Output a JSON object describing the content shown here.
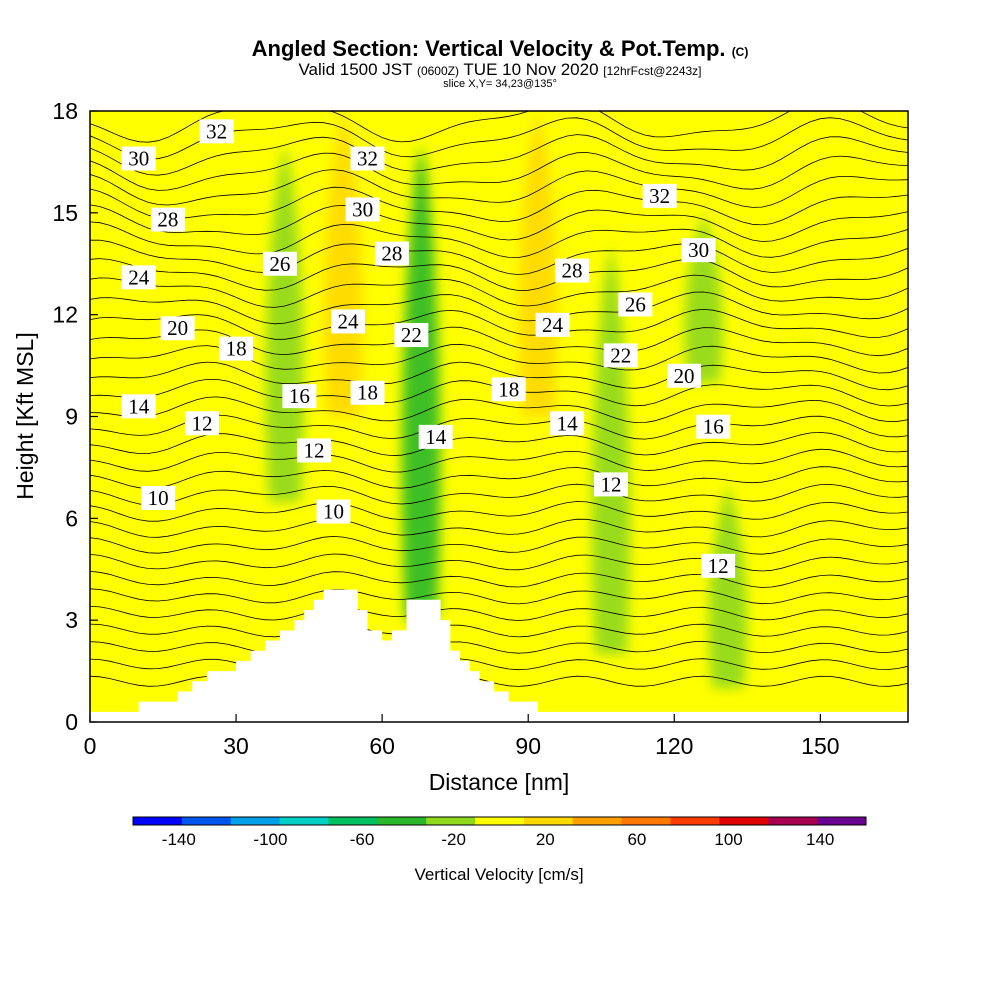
{
  "header": {
    "title": "Angled Section: Vertical Velocity & Pot.Temp.",
    "title_mark": "(C)",
    "subtitle_a": "Valid 1500 JST",
    "subtitle_b": "(0600Z)",
    "subtitle_c": "TUE 10 Nov 2020",
    "subtitle_d": "[12hrFcst@2243z]",
    "slice": "slice X,Y= 34,23@135°"
  },
  "chart_data": {
    "type": "heatmap",
    "xlabel": "Distance [nm]",
    "ylabel": "Height [Kft MSL]",
    "xlim": [
      0,
      168
    ],
    "ylim": [
      0,
      18
    ],
    "x_ticks": [
      "0",
      "30",
      "60",
      "90",
      "120",
      "150"
    ],
    "x_tick_values": [
      0,
      30,
      60,
      90,
      120,
      150
    ],
    "y_ticks": [
      "0",
      "3",
      "6",
      "9",
      "12",
      "15",
      "18"
    ],
    "y_tick_values": [
      0,
      3,
      6,
      9,
      12,
      15,
      18
    ],
    "colorbar": {
      "label": "Vertical Velocity [cm/s]",
      "ticks": [
        "-140",
        "-100",
        "-60",
        "-20",
        "20",
        "60",
        "100",
        "140"
      ],
      "tick_values": [
        -140,
        -100,
        -60,
        -20,
        20,
        60,
        100,
        140
      ],
      "range": [
        -160,
        160
      ],
      "colors": [
        "#0000ff",
        "#0055ee",
        "#00a0e8",
        "#00cfc8",
        "#00c060",
        "#2ab82a",
        "#8ed81e",
        "#ffff00",
        "#ffd800",
        "#ffa000",
        "#ff7800",
        "#ff3c00",
        "#e00000",
        "#a80050",
        "#6a0090"
      ]
    },
    "velocity_bands": [
      {
        "x": 20,
        "ymin": 7.5,
        "ymax": 18,
        "value": 5
      },
      {
        "x": 40,
        "ymin": 6.5,
        "ymax": 17,
        "value": -25
      },
      {
        "x": 52,
        "ymin": 9,
        "ymax": 18,
        "value": 25
      },
      {
        "x": 68,
        "ymin": 3,
        "ymax": 17,
        "value": -45
      },
      {
        "x": 92,
        "ymin": 9,
        "ymax": 18,
        "value": 25
      },
      {
        "x": 107,
        "ymin": 2,
        "ymax": 14,
        "value": -25
      },
      {
        "x": 126,
        "ymin": 10,
        "ymax": 15,
        "value": -25
      },
      {
        "x": 131,
        "ymin": 1,
        "ymax": 7,
        "value": -25
      }
    ],
    "terrain": [
      {
        "x": 0,
        "h": 0.3
      },
      {
        "x": 10,
        "h": 0.6
      },
      {
        "x": 16,
        "h": 0.6
      },
      {
        "x": 18,
        "h": 0.9
      },
      {
        "x": 21,
        "h": 1.2
      },
      {
        "x": 24,
        "h": 1.5
      },
      {
        "x": 30,
        "h": 1.8
      },
      {
        "x": 33,
        "h": 2.1
      },
      {
        "x": 36,
        "h": 2.4
      },
      {
        "x": 39,
        "h": 2.7
      },
      {
        "x": 42,
        "h": 3.0
      },
      {
        "x": 44,
        "h": 3.3
      },
      {
        "x": 46,
        "h": 3.6
      },
      {
        "x": 48,
        "h": 3.9
      },
      {
        "x": 53,
        "h": 3.9
      },
      {
        "x": 55,
        "h": 3.3
      },
      {
        "x": 57,
        "h": 2.7
      },
      {
        "x": 60,
        "h": 2.4
      },
      {
        "x": 62,
        "h": 2.7
      },
      {
        "x": 65,
        "h": 3.6
      },
      {
        "x": 70,
        "h": 3.6
      },
      {
        "x": 72,
        "h": 3.0
      },
      {
        "x": 74,
        "h": 2.1
      },
      {
        "x": 76,
        "h": 1.8
      },
      {
        "x": 78,
        "h": 1.5
      },
      {
        "x": 80,
        "h": 1.2
      },
      {
        "x": 83,
        "h": 0.9
      },
      {
        "x": 86,
        "h": 0.6
      },
      {
        "x": 92,
        "h": 0.3
      },
      {
        "x": 168,
        "h": 0.3
      }
    ],
    "contour_labels": [
      {
        "text": "32",
        "x": 26,
        "y": 17.4
      },
      {
        "text": "30",
        "x": 10,
        "y": 16.6
      },
      {
        "text": "32",
        "x": 57,
        "y": 16.6
      },
      {
        "text": "32",
        "x": 117,
        "y": 15.5
      },
      {
        "text": "28",
        "x": 16,
        "y": 14.8
      },
      {
        "text": "30",
        "x": 56,
        "y": 15.1
      },
      {
        "text": "28",
        "x": 62,
        "y": 13.8
      },
      {
        "text": "30",
        "x": 125,
        "y": 13.9
      },
      {
        "text": "26",
        "x": 39,
        "y": 13.5
      },
      {
        "text": "24",
        "x": 10,
        "y": 13.1
      },
      {
        "text": "28",
        "x": 99,
        "y": 13.3
      },
      {
        "text": "26",
        "x": 112,
        "y": 12.3
      },
      {
        "text": "24",
        "x": 53,
        "y": 11.8
      },
      {
        "text": "24",
        "x": 95,
        "y": 11.7
      },
      {
        "text": "20",
        "x": 18,
        "y": 11.6
      },
      {
        "text": "22",
        "x": 66,
        "y": 11.4
      },
      {
        "text": "18",
        "x": 30,
        "y": 11.0
      },
      {
        "text": "22",
        "x": 109,
        "y": 10.8
      },
      {
        "text": "20",
        "x": 122,
        "y": 10.2
      },
      {
        "text": "18",
        "x": 86,
        "y": 9.8
      },
      {
        "text": "16",
        "x": 43,
        "y": 9.6
      },
      {
        "text": "18",
        "x": 57,
        "y": 9.7
      },
      {
        "text": "14",
        "x": 10,
        "y": 9.3
      },
      {
        "text": "12",
        "x": 23,
        "y": 8.8
      },
      {
        "text": "14",
        "x": 98,
        "y": 8.8
      },
      {
        "text": "16",
        "x": 128,
        "y": 8.7
      },
      {
        "text": "14",
        "x": 71,
        "y": 8.4
      },
      {
        "text": "12",
        "x": 46,
        "y": 8.0
      },
      {
        "text": "12",
        "x": 107,
        "y": 7.0
      },
      {
        "text": "10",
        "x": 14,
        "y": 6.6
      },
      {
        "text": "10",
        "x": 50,
        "y": 6.2
      },
      {
        "text": "12",
        "x": 129,
        "y": 4.6
      }
    ]
  }
}
